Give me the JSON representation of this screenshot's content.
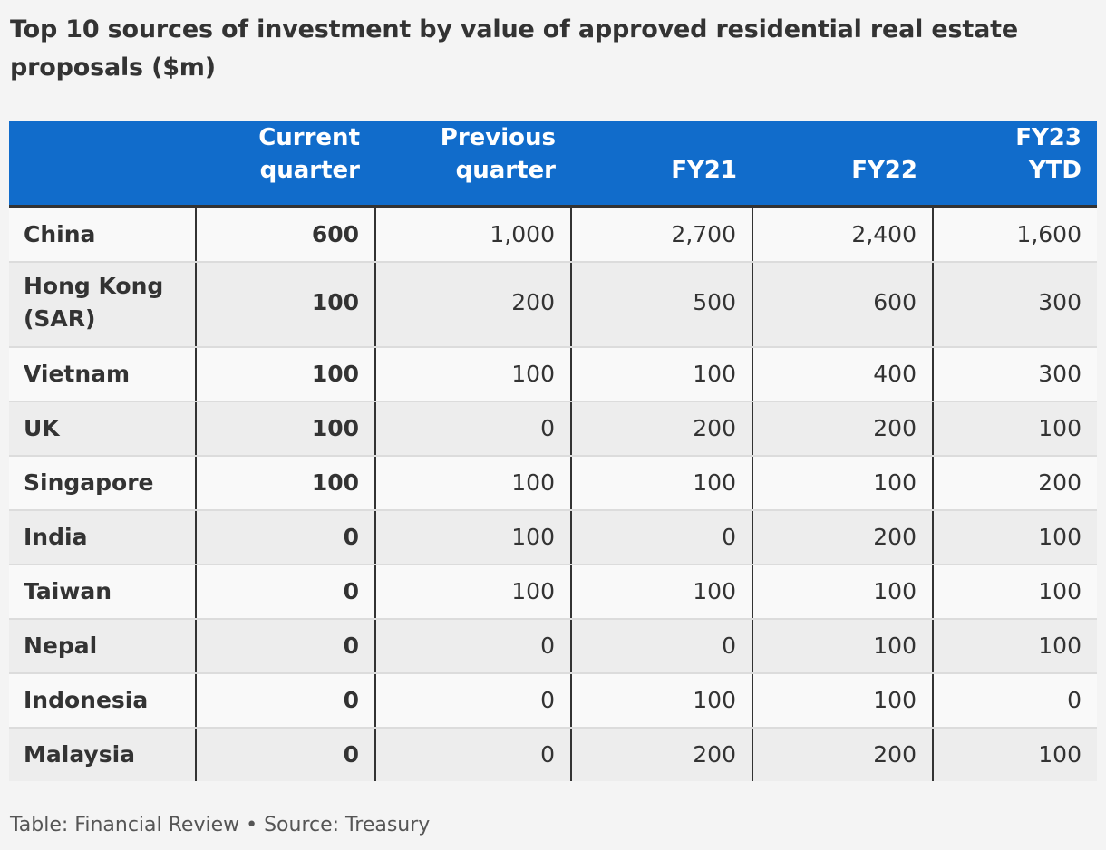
{
  "title": "Top 10 sources of investment by value of approved residential real estate proposals ($m)",
  "footer": "Table: Financial Review • Source: Treasury",
  "colors": {
    "header_background": "#116ccb",
    "header_text": "#ffffff",
    "row_odd": "#f9f9f9",
    "row_even": "#ededed",
    "text": "#333333"
  },
  "chart_data": {
    "type": "table",
    "title": "Top 10 sources of investment by value of approved residential real estate proposals ($m)",
    "columns": [
      "",
      "Current\nquarter",
      "Previous\nquarter",
      "FY21",
      "FY22",
      "FY23\nYTD"
    ],
    "rows": [
      {
        "country": "China",
        "values": [
          "600",
          "1,000",
          "2,700",
          "2,400",
          "1,600"
        ]
      },
      {
        "country": "Hong Kong (SAR)",
        "values": [
          "100",
          "200",
          "500",
          "600",
          "300"
        ]
      },
      {
        "country": "Vietnam",
        "values": [
          "100",
          "100",
          "100",
          "400",
          "300"
        ]
      },
      {
        "country": "UK",
        "values": [
          "100",
          "0",
          "200",
          "200",
          "100"
        ]
      },
      {
        "country": "Singapore",
        "values": [
          "100",
          "100",
          "100",
          "100",
          "200"
        ]
      },
      {
        "country": "India",
        "values": [
          "0",
          "100",
          "0",
          "200",
          "100"
        ]
      },
      {
        "country": "Taiwan",
        "values": [
          "0",
          "100",
          "100",
          "100",
          "100"
        ]
      },
      {
        "country": "Nepal",
        "values": [
          "0",
          "0",
          "0",
          "100",
          "100"
        ]
      },
      {
        "country": "Indonesia",
        "values": [
          "0",
          "0",
          "100",
          "100",
          "0"
        ]
      },
      {
        "country": "Malaysia",
        "values": [
          "0",
          "0",
          "200",
          "200",
          "100"
        ]
      }
    ]
  }
}
